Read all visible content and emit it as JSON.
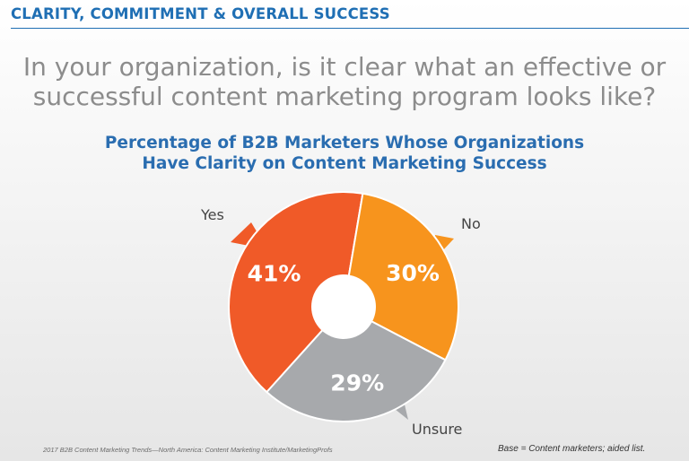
{
  "header": {
    "section_title": "CLARITY, COMMITMENT & OVERALL SUCCESS"
  },
  "question": {
    "line1": "In your organization, is it clear what an effective or",
    "line2": "successful content marketing program looks like?"
  },
  "chart_title": {
    "line1": "Percentage of B2B Marketers Whose Organizations",
    "line2": "Have Clarity on Content Marketing Success"
  },
  "chart_data": {
    "type": "pie",
    "title": "Percentage of B2B Marketers Whose Organizations Have Clarity on Content Marketing Success",
    "categories": [
      "Yes",
      "No",
      "Unsure"
    ],
    "values": [
      41,
      30,
      29
    ],
    "value_labels": [
      "41%",
      "30%",
      "29%"
    ],
    "colors": [
      "#f05a28",
      "#f7941d",
      "#a7a9ac"
    ],
    "donut": true
  },
  "footer": {
    "source": "2017 B2B Content Marketing Trends—North America: Content Marketing Institute/MarketingProfs",
    "base_note": "Base = Content marketers; aided list."
  }
}
